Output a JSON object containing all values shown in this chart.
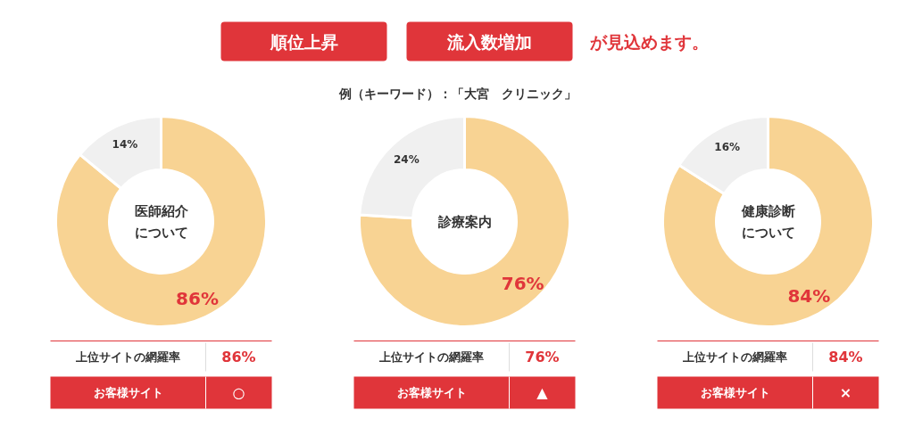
{
  "chart_data": [
    {
      "type": "other",
      "annotations": [
        "順位上昇",
        "流入数増加",
        "が見込めます。",
        "例（キーワード）：「大宮　クリニック」"
      ]
    },
    {
      "type": "donut",
      "title": "医師紹介について",
      "categories": [
        null,
        null
      ],
      "values": [
        86,
        14
      ],
      "colors": [
        "#f8d393",
        "#f0f0f0"
      ],
      "value_labels": [
        "86%",
        "14%"
      ],
      "annotations": [
        "上位サイトの網羅率",
        "86%",
        "お客様サイト",
        "○"
      ]
    },
    {
      "type": "donut",
      "title": "診療案内",
      "categories": [
        null,
        null
      ],
      "values": [
        76,
        24
      ],
      "colors": [
        "#f8d393",
        "#f0f0f0"
      ],
      "value_labels": [
        "76%",
        "24%"
      ],
      "annotations": [
        "上位サイトの網羅率",
        "76%",
        "お客様サイト",
        "▲"
      ]
    },
    {
      "type": "donut",
      "title": "健康診断について",
      "categories": [
        null,
        null
      ],
      "values": [
        84,
        16
      ],
      "colors": [
        "#f8d393",
        "#f0f0f0"
      ],
      "value_labels": [
        "84%",
        "16%"
      ],
      "annotations": [
        "上位サイトの網羅率",
        "84%",
        "お客様サイト",
        "×"
      ]
    }
  ]
}
